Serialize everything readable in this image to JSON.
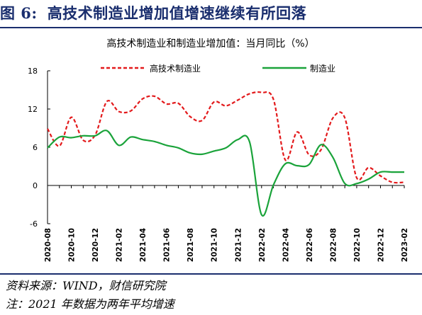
{
  "figure": {
    "number": "图 6:",
    "title": "高技术制造业增加值增速继续有所回落"
  },
  "footnotes": {
    "source": "资料来源：WIND，财信研究院",
    "note": "注：2021 年数据为两年平均增速"
  },
  "chart_data": {
    "type": "line",
    "title": "高技术制造业和制造业增加值：当月同比（%）",
    "xlabel": "",
    "ylabel": "",
    "ylim": [
      -6,
      18
    ],
    "yticks": [
      18,
      12,
      6,
      0,
      -6
    ],
    "grid": false,
    "legend_position": "top",
    "x": [
      "2020-08",
      "2020-09",
      "2020-10",
      "2020-11",
      "2020-12",
      "2021-01",
      "2021-02",
      "2021-03",
      "2021-04",
      "2021-05",
      "2021-06",
      "2021-07",
      "2021-08",
      "2021-09",
      "2021-10",
      "2021-11",
      "2021-12",
      "2022-01",
      "2022-02",
      "2022-03",
      "2022-04",
      "2022-05",
      "2022-06",
      "2022-07",
      "2022-08",
      "2022-09",
      "2022-10",
      "2022-11",
      "2022-12",
      "2023-01",
      "2023-02"
    ],
    "xticks": [
      "2020-08",
      "2020-10",
      "2020-12",
      "2021-02",
      "2021-04",
      "2021-06",
      "2021-08",
      "2021-10",
      "2021-12",
      "2022-02",
      "2022-04",
      "2022-06",
      "2022-08",
      "2022-10",
      "2022-12",
      "2023-02"
    ],
    "series": [
      {
        "name": "高技术制造业",
        "color": "#e31a1c",
        "style": "dashed",
        "values": [
          8.9,
          6.2,
          10.7,
          7.1,
          7.9,
          13.2,
          11.6,
          11.7,
          13.6,
          14.0,
          12.8,
          12.9,
          10.8,
          10.2,
          13.1,
          12.5,
          13.4,
          14.4,
          14.6,
          13.5,
          4.0,
          8.4,
          4.8,
          5.6,
          10.6,
          10.6,
          1.2,
          2.8,
          1.5,
          0.5,
          0.5
        ]
      },
      {
        "name": "制造业",
        "color": "#1aa33a",
        "style": "solid",
        "values": [
          5.9,
          7.6,
          7.5,
          7.8,
          7.8,
          8.6,
          6.3,
          7.6,
          7.2,
          6.9,
          6.3,
          5.9,
          5.1,
          4.9,
          5.4,
          5.9,
          7.2,
          6.8,
          -4.6,
          0.1,
          3.4,
          3.1,
          3.3,
          6.4,
          4.4,
          0.3,
          0.3,
          1.0,
          2.1,
          2.1,
          2.1
        ]
      }
    ]
  }
}
